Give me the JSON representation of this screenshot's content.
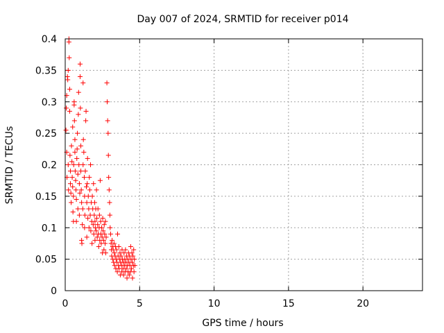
{
  "chart_data": {
    "type": "scatter",
    "title": "Day 007 of 2024, SRMTID for receiver p014",
    "xlabel": "GPS time / hours",
    "ylabel": "SRMTID / TECUs",
    "xlim": [
      0,
      24
    ],
    "ylim": [
      0,
      0.4
    ],
    "xticks": [
      0,
      5,
      10,
      15,
      20
    ],
    "xtick_labels": [
      "0",
      "5",
      "10",
      "15",
      "20"
    ],
    "yticks": [
      0,
      0.05,
      0.1,
      0.15,
      0.2,
      0.25,
      0.3,
      0.35,
      0.4
    ],
    "ytick_labels": [
      "0",
      "0.05",
      "0.1",
      "0.15",
      "0.2",
      "0.25",
      "0.3",
      "0.35",
      "0.4"
    ],
    "grid": true,
    "marker": "+",
    "color": "#ff0000",
    "series": [
      {
        "name": "SRMTID",
        "points": [
          [
            0.05,
            0.255
          ],
          [
            0.07,
            0.29
          ],
          [
            0.1,
            0.31
          ],
          [
            0.1,
            0.22
          ],
          [
            0.12,
            0.18
          ],
          [
            0.15,
            0.34
          ],
          [
            0.17,
            0.335
          ],
          [
            0.2,
            0.35
          ],
          [
            0.2,
            0.2
          ],
          [
            0.22,
            0.16
          ],
          [
            0.25,
            0.4
          ],
          [
            0.25,
            0.395
          ],
          [
            0.27,
            0.37
          ],
          [
            0.3,
            0.32
          ],
          [
            0.3,
            0.285
          ],
          [
            0.32,
            0.215
          ],
          [
            0.35,
            0.19
          ],
          [
            0.35,
            0.17
          ],
          [
            0.38,
            0.155
          ],
          [
            0.4,
            0.14
          ],
          [
            0.42,
            0.23
          ],
          [
            0.45,
            0.205
          ],
          [
            0.47,
            0.18
          ],
          [
            0.5,
            0.26
          ],
          [
            0.5,
            0.165
          ],
          [
            0.52,
            0.125
          ],
          [
            0.55,
            0.15
          ],
          [
            0.55,
            0.11
          ],
          [
            0.57,
            0.2
          ],
          [
            0.6,
            0.3
          ],
          [
            0.6,
            0.295
          ],
          [
            0.62,
            0.27
          ],
          [
            0.65,
            0.24
          ],
          [
            0.65,
            0.22
          ],
          [
            0.67,
            0.19
          ],
          [
            0.7,
            0.175
          ],
          [
            0.72,
            0.16
          ],
          [
            0.75,
            0.145
          ],
          [
            0.75,
            0.11
          ],
          [
            0.78,
            0.21
          ],
          [
            0.8,
            0.225
          ],
          [
            0.82,
            0.25
          ],
          [
            0.85,
            0.185
          ],
          [
            0.85,
            0.13
          ],
          [
            0.88,
            0.28
          ],
          [
            0.9,
            0.315
          ],
          [
            0.92,
            0.2
          ],
          [
            0.95,
            0.17
          ],
          [
            0.95,
            0.12
          ],
          [
            0.98,
            0.155
          ],
          [
            1.0,
            0.34
          ],
          [
            1.0,
            0.36
          ],
          [
            1.02,
            0.29
          ],
          [
            1.05,
            0.23
          ],
          [
            1.05,
            0.19
          ],
          [
            1.08,
            0.16
          ],
          [
            1.1,
            0.14
          ],
          [
            1.1,
            0.08
          ],
          [
            1.12,
            0.075
          ],
          [
            1.15,
            0.105
          ],
          [
            1.18,
            0.13
          ],
          [
            1.2,
            0.2
          ],
          [
            1.2,
            0.33
          ],
          [
            1.22,
            0.24
          ],
          [
            1.25,
            0.22
          ],
          [
            1.28,
            0.18
          ],
          [
            1.3,
            0.15
          ],
          [
            1.3,
            0.1
          ],
          [
            1.32,
            0.12
          ],
          [
            1.35,
            0.19
          ],
          [
            1.38,
            0.27
          ],
          [
            1.4,
            0.285
          ],
          [
            1.42,
            0.165
          ],
          [
            1.45,
            0.14
          ],
          [
            1.45,
            0.085
          ],
          [
            1.48,
            0.17
          ],
          [
            1.5,
            0.21
          ],
          [
            1.52,
            0.115
          ],
          [
            1.55,
            0.15
          ],
          [
            1.58,
            0.13
          ],
          [
            1.6,
            0.1
          ],
          [
            1.62,
            0.18
          ],
          [
            1.65,
            0.16
          ],
          [
            1.68,
            0.12
          ],
          [
            1.7,
            0.2
          ],
          [
            1.72,
            0.095
          ],
          [
            1.75,
            0.14
          ],
          [
            1.78,
            0.11
          ],
          [
            1.8,
            0.075
          ],
          [
            1.82,
            0.15
          ],
          [
            1.85,
            0.13
          ],
          [
            1.88,
            0.105
          ],
          [
            1.9,
            0.17
          ],
          [
            1.92,
            0.09
          ],
          [
            1.95,
            0.12
          ],
          [
            1.98,
            0.14
          ],
          [
            2.0,
            0.11
          ],
          [
            2.0,
            0.08
          ],
          [
            2.02,
            0.1
          ],
          [
            2.05,
            0.13
          ],
          [
            2.08,
            0.095
          ],
          [
            2.1,
            0.16
          ],
          [
            2.12,
            0.115
          ],
          [
            2.15,
            0.085
          ],
          [
            2.18,
            0.105
          ],
          [
            2.2,
            0.13
          ],
          [
            2.22,
            0.09
          ],
          [
            2.25,
            0.07
          ],
          [
            2.28,
            0.1
          ],
          [
            2.3,
            0.12
          ],
          [
            2.32,
            0.08
          ],
          [
            2.35,
            0.175
          ],
          [
            2.38,
            0.11
          ],
          [
            2.4,
            0.09
          ],
          [
            2.42,
            0.075
          ],
          [
            2.45,
            0.1
          ],
          [
            2.48,
            0.085
          ],
          [
            2.5,
            0.06
          ],
          [
            2.52,
            0.115
          ],
          [
            2.55,
            0.095
          ],
          [
            2.58,
            0.08
          ],
          [
            2.6,
            0.065
          ],
          [
            2.62,
            0.105
          ],
          [
            2.65,
            0.09
          ],
          [
            2.68,
            0.075
          ],
          [
            2.7,
            0.11
          ],
          [
            2.72,
            0.06
          ],
          [
            2.75,
            0.085
          ],
          [
            2.8,
            0.33
          ],
          [
            2.82,
            0.3
          ],
          [
            2.85,
            0.27
          ],
          [
            2.88,
            0.25
          ],
          [
            2.9,
            0.215
          ],
          [
            2.92,
            0.18
          ],
          [
            2.95,
            0.16
          ],
          [
            2.98,
            0.14
          ],
          [
            3.0,
            0.12
          ],
          [
            3.02,
            0.1
          ],
          [
            3.05,
            0.09
          ],
          [
            3.08,
            0.075
          ],
          [
            3.1,
            0.065
          ],
          [
            3.12,
            0.055
          ],
          [
            3.15,
            0.08
          ],
          [
            3.18,
            0.07
          ],
          [
            3.2,
            0.05
          ],
          [
            3.22,
            0.065
          ],
          [
            3.25,
            0.045
          ],
          [
            3.28,
            0.075
          ],
          [
            3.3,
            0.06
          ],
          [
            3.32,
            0.04
          ],
          [
            3.35,
            0.055
          ],
          [
            3.38,
            0.07
          ],
          [
            3.4,
            0.035
          ],
          [
            3.42,
            0.05
          ],
          [
            3.45,
            0.065
          ],
          [
            3.48,
            0.045
          ],
          [
            3.5,
            0.03
          ],
          [
            3.52,
            0.09
          ],
          [
            3.55,
            0.055
          ],
          [
            3.58,
            0.04
          ],
          [
            3.6,
            0.07
          ],
          [
            3.62,
            0.035
          ],
          [
            3.65,
            0.05
          ],
          [
            3.68,
            0.06
          ],
          [
            3.7,
            0.025
          ],
          [
            3.72,
            0.045
          ],
          [
            3.75,
            0.055
          ],
          [
            3.78,
            0.04
          ],
          [
            3.8,
            0.03
          ],
          [
            3.82,
            0.065
          ],
          [
            3.85,
            0.05
          ],
          [
            3.88,
            0.035
          ],
          [
            3.9,
            0.045
          ],
          [
            3.92,
            0.025
          ],
          [
            3.95,
            0.06
          ],
          [
            3.98,
            0.04
          ],
          [
            4.0,
            0.05
          ],
          [
            4.02,
            0.03
          ],
          [
            4.05,
            0.065
          ],
          [
            4.08,
            0.045
          ],
          [
            4.1,
            0.035
          ],
          [
            4.12,
            0.055
          ],
          [
            4.15,
            0.02
          ],
          [
            4.18,
            0.04
          ],
          [
            4.2,
            0.05
          ],
          [
            4.22,
            0.03
          ],
          [
            4.25,
            0.06
          ],
          [
            4.28,
            0.045
          ],
          [
            4.3,
            0.025
          ],
          [
            4.32,
            0.055
          ],
          [
            4.35,
            0.04
          ],
          [
            4.38,
            0.03
          ],
          [
            4.4,
            0.07
          ],
          [
            4.42,
            0.05
          ],
          [
            4.45,
            0.035
          ],
          [
            4.48,
            0.06
          ],
          [
            4.5,
            0.045
          ],
          [
            4.52,
            0.02
          ],
          [
            4.55,
            0.055
          ],
          [
            4.58,
            0.04
          ],
          [
            4.6,
            0.065
          ],
          [
            4.62,
            0.03
          ],
          [
            4.65,
            0.05
          ],
          [
            4.68,
            0.04
          ]
        ]
      }
    ]
  }
}
